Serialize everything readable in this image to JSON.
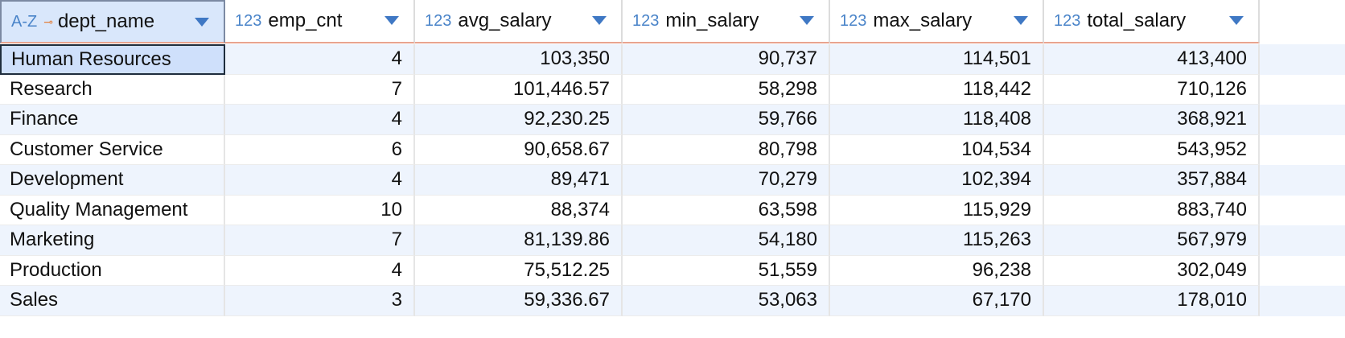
{
  "columns": [
    {
      "name": "dept_name",
      "type": "A-Z"
    },
    {
      "name": "emp_cnt",
      "type": "123"
    },
    {
      "name": "avg_salary",
      "type": "123"
    },
    {
      "name": "min_salary",
      "type": "123"
    },
    {
      "name": "max_salary",
      "type": "123"
    },
    {
      "name": "total_salary",
      "type": "123"
    }
  ],
  "rows": [
    [
      "Human Resources",
      "4",
      "103,350",
      "90,737",
      "114,501",
      "413,400"
    ],
    [
      "Research",
      "7",
      "101,446.57",
      "58,298",
      "118,442",
      "710,126"
    ],
    [
      "Finance",
      "4",
      "92,230.25",
      "59,766",
      "118,408",
      "368,921"
    ],
    [
      "Customer Service",
      "6",
      "90,658.67",
      "80,798",
      "104,534",
      "543,952"
    ],
    [
      "Development",
      "4",
      "89,471",
      "70,279",
      "102,394",
      "357,884"
    ],
    [
      "Quality Management",
      "10",
      "88,374",
      "63,598",
      "115,929",
      "883,740"
    ],
    [
      "Marketing",
      "7",
      "81,139.86",
      "54,180",
      "115,263",
      "567,979"
    ],
    [
      "Production",
      "4",
      "75,512.25",
      "51,559",
      "96,238",
      "302,049"
    ],
    [
      "Sales",
      "3",
      "59,336.67",
      "53,063",
      "67,170",
      "178,010"
    ]
  ],
  "selected_cell": {
    "row": 0,
    "col": 0
  },
  "icons": {
    "text_type": "az-type-icon",
    "numeric_type": "number-type-icon",
    "key": "key-icon",
    "sort": "sort-dropdown-icon"
  },
  "colors": {
    "header_selected_bg": "#d9e7fb",
    "row_alt_bg": "#eef4fd",
    "type_icon": "#4a84c9",
    "sort_arrow": "#3f78c4",
    "header_underline": "#e8a48f"
  }
}
